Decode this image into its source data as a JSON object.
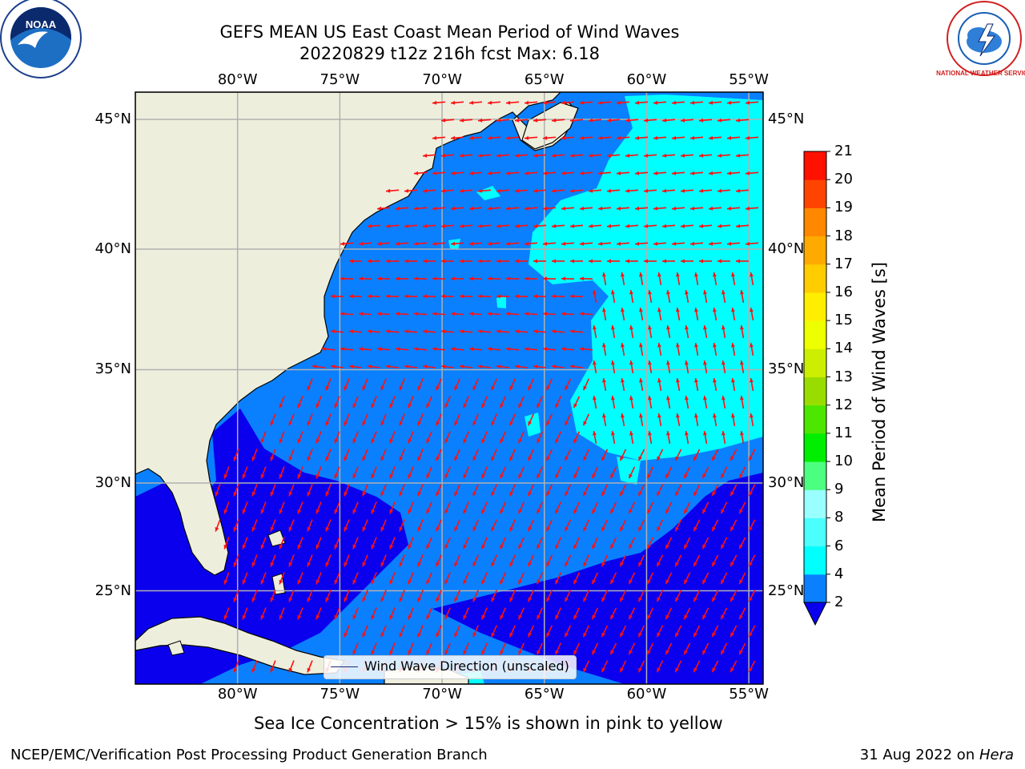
{
  "title": {
    "line1": "GEFS MEAN US East Coast Mean Period of Wind Waves",
    "line2": "20220829 t12z 216h fcst   Max: 6.18"
  },
  "map": {
    "lon_labels": [
      "80°W",
      "75°W",
      "70°W",
      "65°W",
      "60°W",
      "55°W"
    ],
    "lat_labels": [
      "45°N",
      "40°N",
      "35°N",
      "30°N",
      "25°N"
    ],
    "lon_range": [
      -85,
      -54.3
    ],
    "lat_range": [
      20.5,
      46
    ],
    "colors": {
      "land": "#eeeedd",
      "ocean_2_4": "#0a80ff",
      "ocean_lt2": "#0a00ee",
      "ocean_4_6": "#00ffff",
      "arrow": "#ff1010",
      "grid": "#b0b0b0"
    },
    "legend_label": "Wind Wave Direction (unscaled)"
  },
  "colorbar": {
    "title": "Mean Period of Wind Waves [s]",
    "ticks": [
      "2",
      "4",
      "6",
      "8",
      "9",
      "10",
      "11",
      "12",
      "13",
      "14",
      "15",
      "16",
      "17",
      "18",
      "19",
      "20",
      "21"
    ],
    "colors": [
      "#0a80ff",
      "#00ffff",
      "#4cffff",
      "#99ffff",
      "#4dff80",
      "#00ee00",
      "#4ce600",
      "#99dd00",
      "#ccee00",
      "#eeff00",
      "#ffee00",
      "#ffcc00",
      "#ffaa00",
      "#ff8800",
      "#ff4400",
      "#ff1100"
    ],
    "under_color": "#0a00ee"
  },
  "logos": {
    "noaa_text": "NOAA",
    "nws_text": "NATIONAL WEATHER SERVICE"
  },
  "footer": {
    "note": "Sea Ice Concentration > 15% is shown in pink to yellow",
    "left": "NCEP/EMC/Verification Post Processing Product Generation Branch",
    "date": "31 Aug 2022 on ",
    "machine": "Hera"
  }
}
